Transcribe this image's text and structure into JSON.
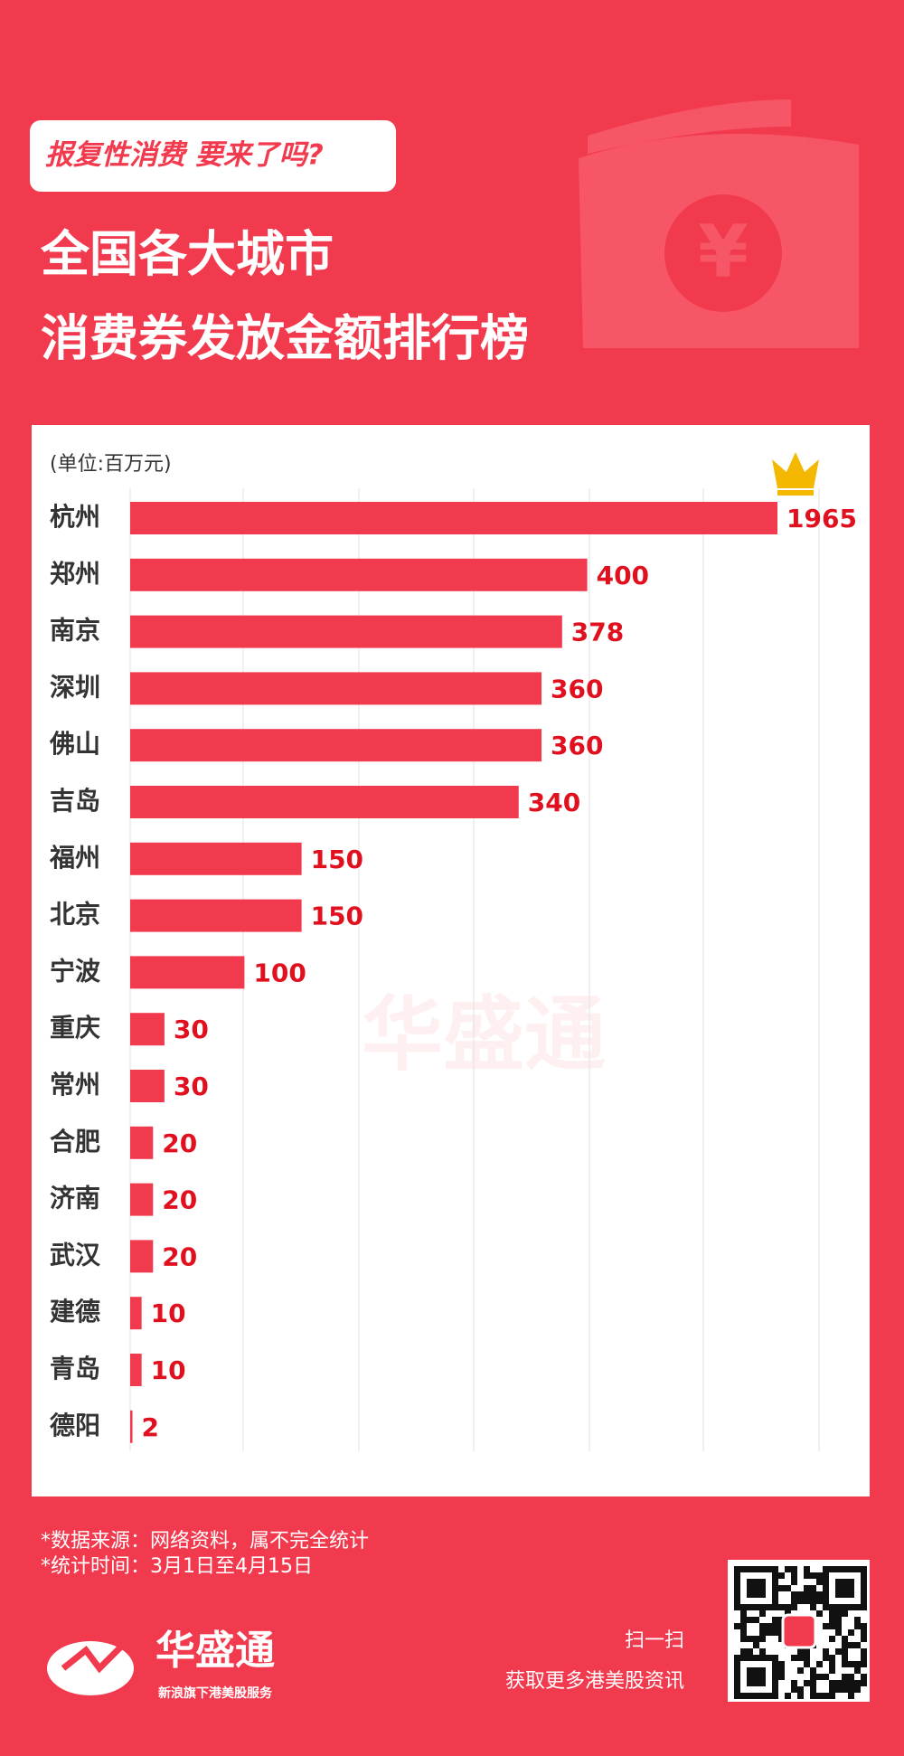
{
  "tag": "报复性消费 要来了吗?",
  "title_lines": [
    "全国各大城市",
    "消费券发放金额排行榜"
  ],
  "chart_data": {
    "type": "bar",
    "orientation": "horizontal",
    "unit_label": "(单位:百万元)",
    "categories": [
      "杭州",
      "郑州",
      "南京",
      "深圳",
      "佛山",
      "吉岛",
      "福州",
      "北京",
      "宁波",
      "重庆",
      "常州",
      "合肥",
      "济南",
      "武汉",
      "建德",
      "青岛",
      "德阳"
    ],
    "values": [
      1965,
      400,
      378,
      360,
      360,
      340,
      150,
      150,
      100,
      30,
      30,
      20,
      20,
      20,
      10,
      10,
      2
    ],
    "color": "#f23a4e",
    "grid": true
  },
  "watermark": "华盛通",
  "notes": [
    "*数据来源：网络资料，属不完全统计",
    "*统计时间：3月1日至4月15日"
  ],
  "logo": {
    "name": "华盛通",
    "slogan": "新浪旗下港美股服务"
  },
  "qr": {
    "line1": "扫一扫",
    "line2": "获取更多港美股资讯"
  }
}
